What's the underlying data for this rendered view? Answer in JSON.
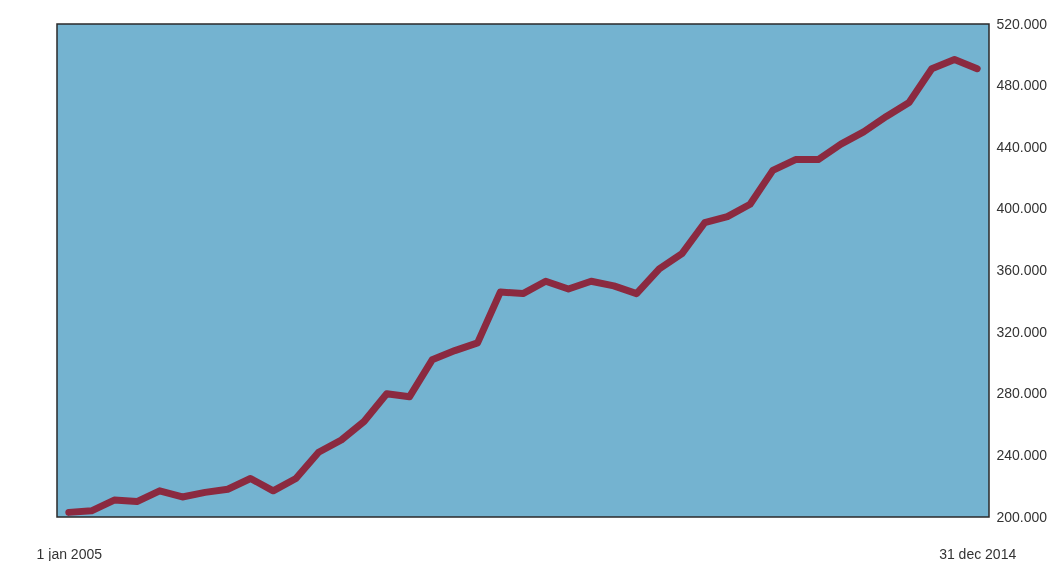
{
  "chart_data": {
    "type": "line",
    "categories": [
      "1 jan 2005",
      null,
      null,
      null,
      null,
      null,
      null,
      null,
      null,
      null,
      null,
      null,
      null,
      null,
      null,
      null,
      null,
      null,
      null,
      null,
      null,
      null,
      null,
      null,
      null,
      null,
      null,
      null,
      null,
      null,
      null,
      null,
      null,
      null,
      null,
      null,
      null,
      null,
      null,
      null,
      "31 dec 2014"
    ],
    "series": [
      {
        "color": "#8b2a40",
        "values": [
          203000,
          204000,
          211000,
          210000,
          217000,
          213000,
          216000,
          218000,
          225000,
          217000,
          225000,
          242000,
          250000,
          262000,
          280000,
          278000,
          302000,
          308000,
          313000,
          346000,
          345000,
          353000,
          348000,
          353000,
          350000,
          345000,
          361000,
          371000,
          391000,
          395000,
          403000,
          425000,
          432000,
          432000,
          442000,
          450000,
          460000,
          469000,
          491000,
          497000,
          491000
        ]
      }
    ],
    "ylim": [
      200000,
      520000
    ],
    "yticks": [
      {
        "value": 200000,
        "label": "200.000"
      },
      {
        "value": 240000,
        "label": "240.000"
      },
      {
        "value": 280000,
        "label": "280.000"
      },
      {
        "value": 320000,
        "label": "320.000"
      },
      {
        "value": 360000,
        "label": "360.000"
      },
      {
        "value": 400000,
        "label": "400.000"
      },
      {
        "value": 440000,
        "label": "440.000"
      },
      {
        "value": 480000,
        "label": "480.000"
      },
      {
        "value": 520000,
        "label": "520.000"
      }
    ],
    "grid": false,
    "marker": "none",
    "line_style": "solid"
  }
}
